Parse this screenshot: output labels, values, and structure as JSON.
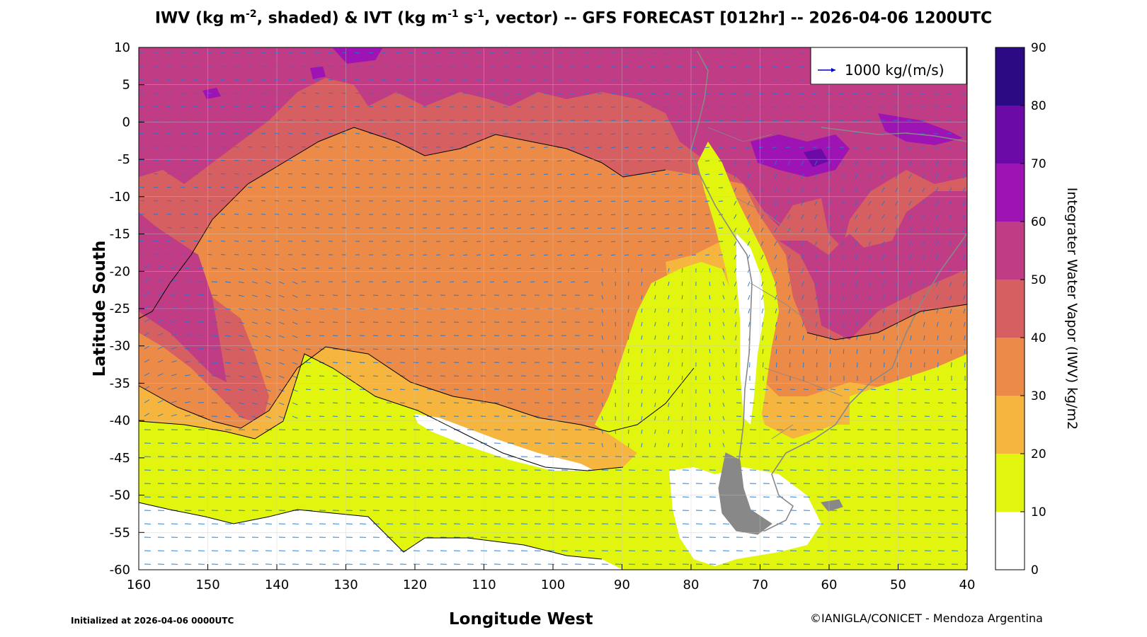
{
  "title": {
    "p1": "IWV (kg m",
    "s1": "-2",
    "p2": ", shaded) & IVT (kg m",
    "s2": "-1",
    "p3": " s",
    "s3": "-1",
    "p4": ", vector) -- GFS FORECAST [012hr] -- 2026-04-06 1200UTC"
  },
  "axes": {
    "ylabel": "Latitude South",
    "xlabel": "Longitude West",
    "x_ticks": [
      "160",
      "150",
      "140",
      "130",
      "120",
      "110",
      "100",
      "90",
      "80",
      "70",
      "60",
      "50",
      "40"
    ],
    "y_ticks": [
      "10",
      "5",
      "0",
      "-5",
      "-10",
      "-15",
      "-20",
      "-25",
      "-30",
      "-35",
      "-40",
      "-45",
      "-50",
      "-55",
      "-60"
    ],
    "xlim": [
      160,
      40
    ],
    "ylim": [
      -60,
      10
    ]
  },
  "legend": {
    "label": "1000 kg/(m/s)",
    "color": "#0000cc"
  },
  "colorbar": {
    "label": "Integrater Water Vapor (IWV) kg/m2",
    "ticks": [
      "0",
      "10",
      "20",
      "30",
      "40",
      "50",
      "60",
      "70",
      "80",
      "90"
    ],
    "levels": [
      {
        "min": 0,
        "max": 10,
        "color": "#ffffff"
      },
      {
        "min": 10,
        "max": 20,
        "color": "#e1f50f"
      },
      {
        "min": 20,
        "max": 30,
        "color": "#f5b53f"
      },
      {
        "min": 30,
        "max": 40,
        "color": "#ec8a48"
      },
      {
        "min": 40,
        "max": 50,
        "color": "#d65f62"
      },
      {
        "min": 50,
        "max": 60,
        "color": "#c03c84"
      },
      {
        "min": 60,
        "max": 70,
        "color": "#9d13b3"
      },
      {
        "min": 70,
        "max": 80,
        "color": "#6c0aa8"
      },
      {
        "min": 80,
        "max": 90,
        "color": "#2c0a84"
      }
    ]
  },
  "colors": {
    "vector": "#1f77d4",
    "coast": "#888888",
    "contour": "#000000"
  },
  "footer": {
    "initialized": "Initialized at 2026-04-06 0000UTC",
    "credit": "©IANIGLA/CONICET - Mendoza Argentina"
  }
}
